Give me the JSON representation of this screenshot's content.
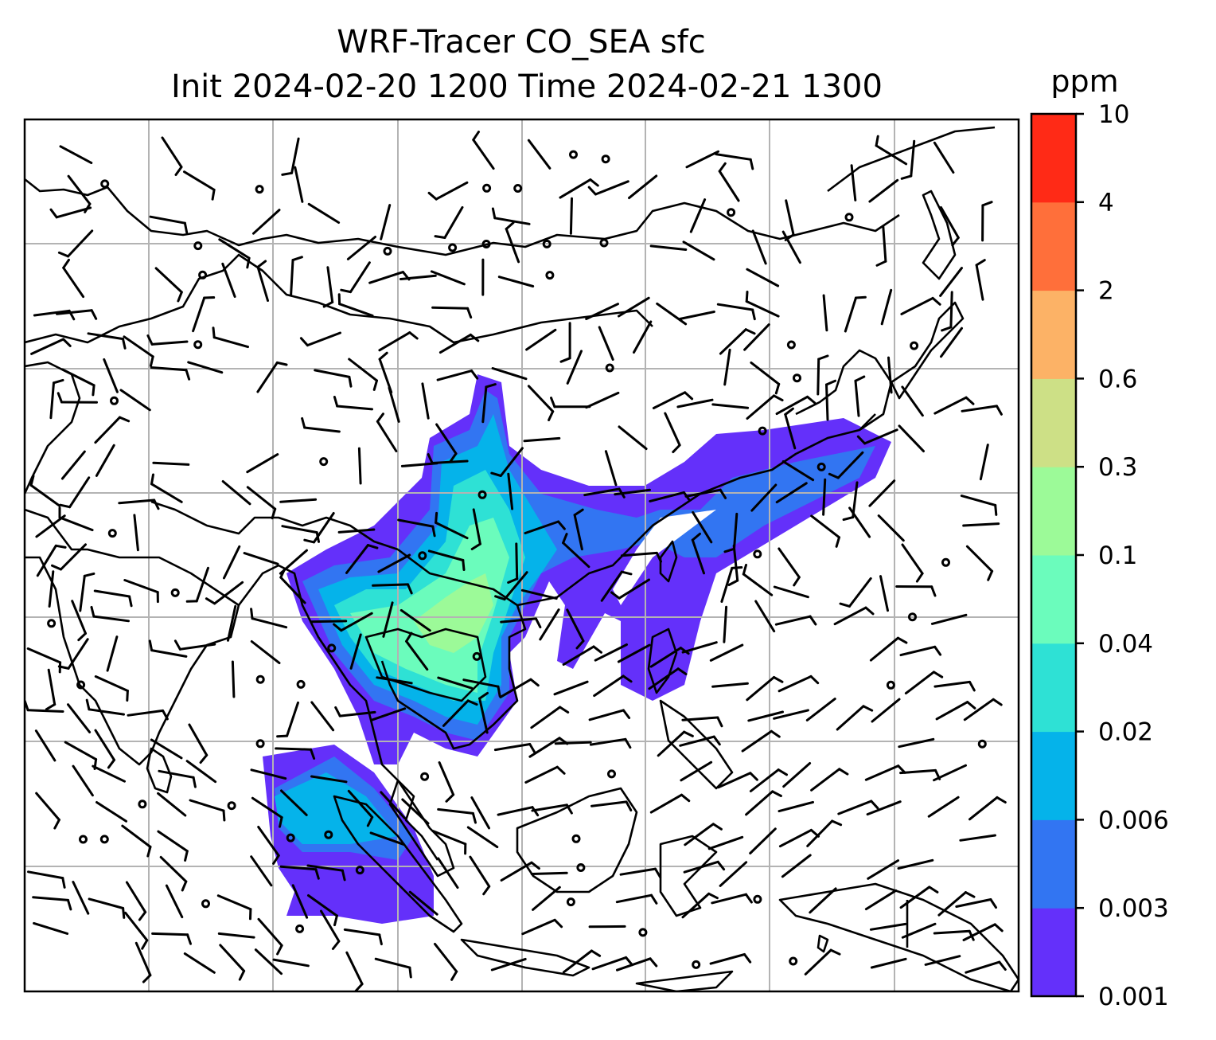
{
  "title": {
    "line1": "WRF-Tracer CO_SEA sfc",
    "line2": "Init 2024-02-20 1200 Time 2024-02-21 1300"
  },
  "colorbar": {
    "unit": "ppm",
    "levels": [
      "0.001",
      "0.003",
      "0.006",
      "0.02",
      "0.04",
      "0.1",
      "0.3",
      "0.6",
      "2",
      "4",
      "10"
    ],
    "colors": [
      "#6430fa",
      "#3275f2",
      "#05b3ea",
      "#2ee1d5",
      "#6bfcbc",
      "#9cfa98",
      "#cde086",
      "#fcb266",
      "#ff6f3a",
      "#ff2a16"
    ]
  },
  "map": {
    "field": "CO_SEA tracer concentration (shaded) with surface wind barbs",
    "gridlines": true
  }
}
